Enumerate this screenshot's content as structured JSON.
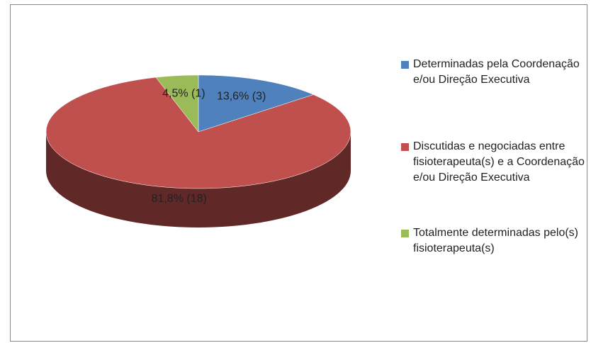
{
  "chart_data": {
    "type": "pie",
    "categories": [
      "Determinadas pela Coordenação e/ou Direção Executiva",
      "Discutidas e negociadas entre fisioterapeuta(s) e a Coordenação e/ou Direção Executiva",
      "Totalmente determinadas pelo(s) fisioterapeuta(s)"
    ],
    "values": [
      13.6,
      81.8,
      4.5
    ],
    "value_labels": [
      "13,6% (3)",
      "81,8% (18)",
      "4,5% (1)"
    ],
    "colors": [
      "#4f81bd",
      "#c0504d",
      "#9bbb59"
    ],
    "legend": "right"
  }
}
